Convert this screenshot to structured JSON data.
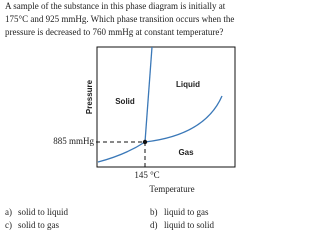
{
  "question": {
    "lines": [
      "A sample of the substance in this phase diagram is initially at",
      "175°C and 925 mmHg. Which phase transition occurs when the",
      "pressure is decreased to 760 mmHg at constant temperature?"
    ]
  },
  "diagram": {
    "y_axis_label": "Pressure",
    "x_axis_label": "Temperature",
    "regions": {
      "solid": "Solid",
      "liquid": "Liquid",
      "gas": "Gas"
    },
    "pressure_marker": "885 mmHg",
    "temperature_marker": "145 °C"
  },
  "options": [
    {
      "letter": "a)",
      "text": "solid to liquid"
    },
    {
      "letter": "b)",
      "text": "liquid to gas"
    },
    {
      "letter": "c)",
      "text": "solid to gas"
    },
    {
      "letter": "d)",
      "text": "liquid to solid"
    }
  ]
}
